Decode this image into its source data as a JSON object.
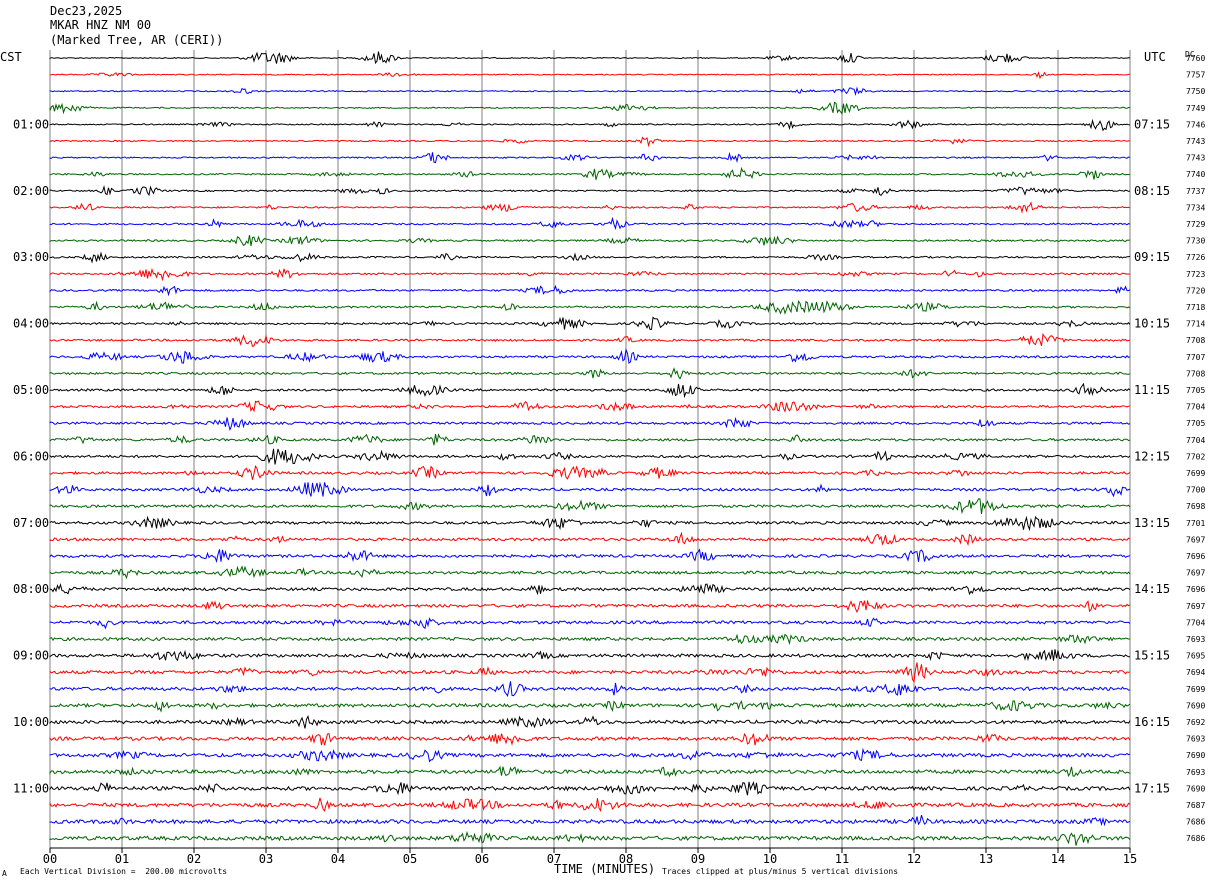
{
  "header": {
    "date": "Dec23,2025",
    "station": "MKAR HNZ NM 00",
    "location": "(Marked Tree, AR (CERI))"
  },
  "left_zone": "CST",
  "right_zone": "UTC",
  "dc_label": "DC",
  "footer": {
    "corner_mark": "A",
    "scale_note": "Each Vertical Division =  200.00 microvolts",
    "clip_note": "Traces clipped at plus/minus 5 vertical divisions"
  },
  "colors": {
    "cycle": [
      "#000000",
      "#ff0000",
      "#0000ff",
      "#006400"
    ],
    "grid": "#808080"
  },
  "chart_data": {
    "type": "line",
    "xlabel": "TIME (MINUTES)",
    "xlim": [
      0,
      15
    ],
    "x_ticks": [
      "00",
      "01",
      "02",
      "03",
      "04",
      "05",
      "06",
      "07",
      "08",
      "09",
      "10",
      "11",
      "12",
      "13",
      "14",
      "15"
    ],
    "left_time_labels": [
      "01:00",
      "02:00",
      "03:00",
      "04:00",
      "05:00",
      "06:00",
      "07:00",
      "08:00",
      "09:00",
      "10:00",
      "11:00"
    ],
    "right_time_labels": [
      "07:15",
      "08:15",
      "09:15",
      "10:15",
      "11:15",
      "12:15",
      "13:15",
      "14:15",
      "15:15",
      "16:15",
      "17:15"
    ],
    "trace_count": 48,
    "dc_offsets": [
      "7760",
      "7757",
      "7750",
      "7749",
      "7746",
      "7743",
      "7743",
      "7740",
      "7737",
      "7734",
      "7729",
      "7730",
      "7726",
      "7723",
      "7720",
      "7718",
      "7714",
      "7708",
      "7707",
      "7708",
      "7705",
      "7704",
      "7705",
      "7704",
      "7702",
      "7699",
      "7700",
      "7698",
      "7701",
      "7697",
      "7696",
      "7697",
      "7696",
      "7697",
      "7704",
      "7693",
      "7695",
      "7694",
      "7699",
      "7690",
      "7692",
      "7693",
      "7690",
      "7693",
      "7690",
      "7687",
      "7686",
      "7686"
    ]
  }
}
